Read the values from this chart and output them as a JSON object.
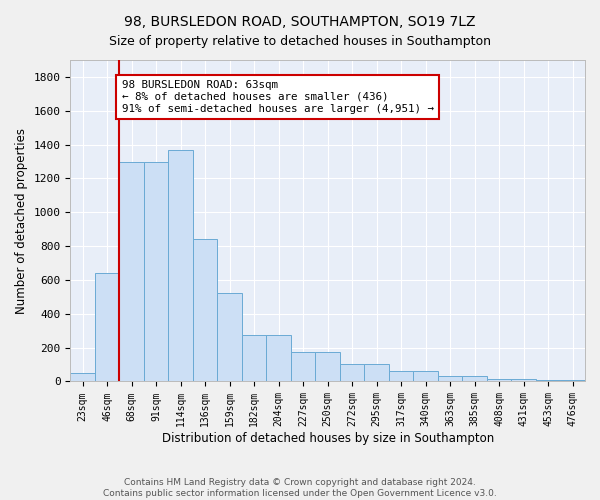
{
  "title": "98, BURSLEDON ROAD, SOUTHAMPTON, SO19 7LZ",
  "subtitle": "Size of property relative to detached houses in Southampton",
  "xlabel": "Distribution of detached houses by size in Southampton",
  "ylabel": "Number of detached properties",
  "bar_color": "#ccdff5",
  "bar_edge_color": "#6aaad4",
  "background_color": "#e8eef8",
  "categories": [
    "23sqm",
    "46sqm",
    "68sqm",
    "91sqm",
    "114sqm",
    "136sqm",
    "159sqm",
    "182sqm",
    "204sqm",
    "227sqm",
    "250sqm",
    "272sqm",
    "295sqm",
    "317sqm",
    "340sqm",
    "363sqm",
    "385sqm",
    "408sqm",
    "431sqm",
    "453sqm",
    "476sqm"
  ],
  "values": [
    50,
    640,
    1300,
    1300,
    1370,
    840,
    520,
    275,
    275,
    175,
    175,
    105,
    105,
    60,
    60,
    30,
    30,
    15,
    15,
    10,
    10
  ],
  "vline_position": 1.5,
  "vline_color": "#cc0000",
  "annotation_text": "98 BURSLEDON ROAD: 63sqm\n← 8% of detached houses are smaller (436)\n91% of semi-detached houses are larger (4,951) →",
  "annotation_box_color": "#ffffff",
  "annotation_box_edge": "#cc0000",
  "ylim": [
    0,
    1900
  ],
  "yticks": [
    0,
    200,
    400,
    600,
    800,
    1000,
    1200,
    1400,
    1600,
    1800
  ],
  "footer": "Contains HM Land Registry data © Crown copyright and database right 2024.\nContains public sector information licensed under the Open Government Licence v3.0.",
  "grid_color": "#ffffff",
  "title_fontsize": 10,
  "subtitle_fontsize": 9,
  "figsize": [
    6.0,
    5.0
  ],
  "dpi": 100
}
